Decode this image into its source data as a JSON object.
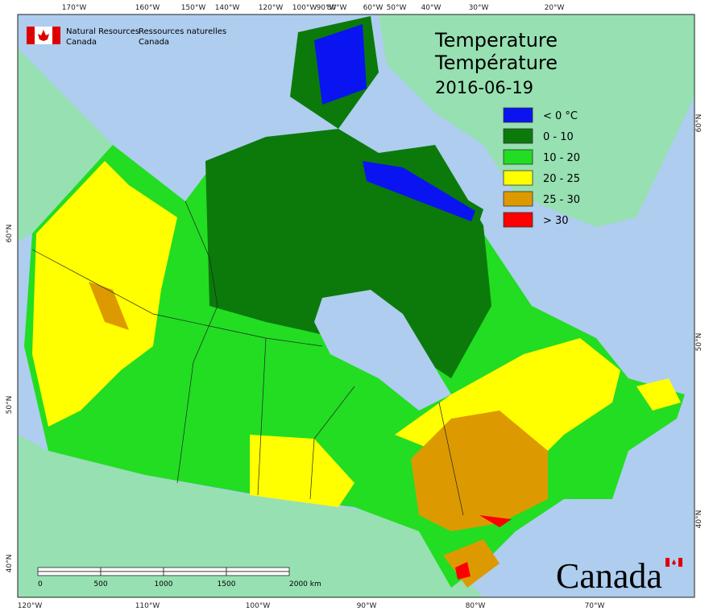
{
  "header": {
    "agency_en": [
      "Natural Resources",
      "Canada"
    ],
    "agency_fr": [
      "Ressources naturelles",
      "Canada"
    ]
  },
  "title": {
    "en": "Temperature",
    "fr": "Température",
    "date": "2016-06-19"
  },
  "legend": [
    {
      "label": "< 0 °C",
      "color": "#0a14f0"
    },
    {
      "label": "0 - 10",
      "color": "#0b7a0b"
    },
    {
      "label": "10 - 20",
      "color": "#22dd22"
    },
    {
      "label": "20 - 25",
      "color": "#ffff00"
    },
    {
      "label": "25 - 30",
      "color": "#dd9a00"
    },
    {
      "label": "> 30",
      "color": "#ff0000"
    }
  ],
  "graticule": {
    "top": [
      "170°W",
      "160°W",
      "150°W",
      "140°W",
      "120°W",
      "100°W",
      "90°W",
      "80°W",
      "60°W",
      "50°W",
      "40°W",
      "30°W",
      "20°W"
    ],
    "bottom": [
      "120°W",
      "110°W",
      "100°W",
      "90°W",
      "80°W",
      "70°W"
    ],
    "left": [
      "60°N",
      "50°N",
      "40°N"
    ],
    "right": [
      "60°N",
      "50°N",
      "40°N"
    ]
  },
  "scale_bar": {
    "labels": [
      "0",
      "500",
      "1000",
      "1500",
      "2000 km"
    ]
  },
  "wordmark": "Canada"
}
